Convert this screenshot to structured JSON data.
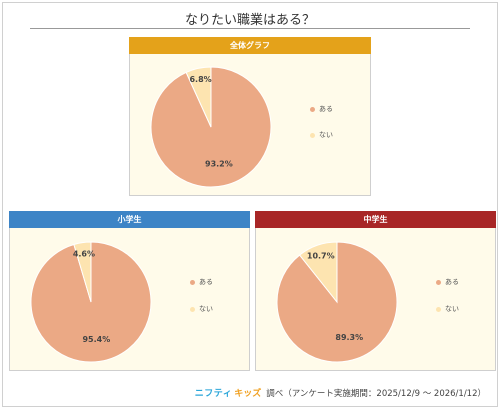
{
  "page": {
    "title": "なりたい職業はある？",
    "footer": {
      "brand_part1": "ニフティ",
      "brand_part2": "キッズ",
      "source": "調べ（アンケート実施期間：2025/12/9 ～ 2026/1/12）"
    }
  },
  "colors": {
    "yes": "#eba985",
    "no": "#fde4b0",
    "header_all": "#e4a21a",
    "header_elementary": "#3d84c6",
    "header_junior": "#a82626"
  },
  "chart_data": [
    {
      "type": "pie",
      "title": "全体グラフ",
      "labels": [
        "ある",
        "ない"
      ],
      "values": [
        93.2,
        6.8
      ],
      "value_labels": [
        "93.2%",
        "6.8%"
      ],
      "legend_position": "right"
    },
    {
      "type": "pie",
      "title": "小学生",
      "labels": [
        "ある",
        "ない"
      ],
      "values": [
        95.4,
        4.6
      ],
      "value_labels": [
        "95.4%",
        "4.6%"
      ],
      "legend_position": "right"
    },
    {
      "type": "pie",
      "title": "中学生",
      "labels": [
        "ある",
        "ない"
      ],
      "values": [
        89.3,
        10.7
      ],
      "value_labels": [
        "89.3%",
        "10.7%"
      ],
      "legend_position": "right"
    }
  ]
}
